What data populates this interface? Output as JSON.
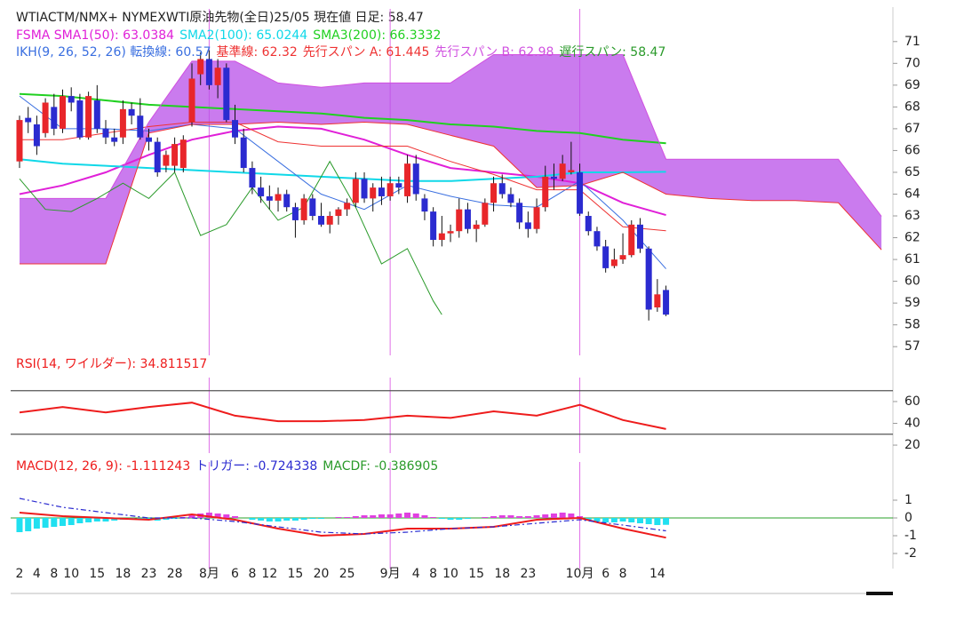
{
  "chart_data": [
    {
      "type": "candlestick",
      "title": "WTIACTM/NMX+ NYMEXWTI原油先物(全日)25/05 現在値 日足: 58.47",
      "xlim": [
        -1.03,
        101.33
      ],
      "ylim": [
        56.6,
        72.5
      ],
      "yticks": [
        57,
        58,
        59,
        60,
        61,
        62,
        63,
        64,
        65,
        66,
        67,
        68,
        69,
        70,
        71
      ],
      "up_color": "#e8262a",
      "down_color": "#2b2bd0",
      "wick_color": "#111111",
      "open": [
        65.5,
        67.5,
        67.2,
        66.8,
        68.0,
        67.0,
        68.5,
        68.3,
        66.6,
        68.3,
        67.0,
        66.6,
        66.6,
        67.9,
        67.6,
        66.6,
        66.4,
        65.3,
        65.3,
        65.2,
        67.3,
        69.5,
        70.2,
        69.0,
        69.8,
        67.4,
        66.6,
        65.2,
        64.3,
        63.9,
        63.7,
        64.0,
        63.4,
        62.8,
        63.8,
        63.0,
        62.6,
        63.0,
        63.3,
        63.6,
        64.7,
        63.8,
        64.3,
        63.9,
        64.5,
        63.9,
        65.4,
        63.8,
        63.2,
        61.9,
        62.2,
        62.3,
        63.3,
        62.4,
        62.6,
        63.6,
        64.5,
        64.0,
        63.6,
        62.7,
        62.4,
        63.4,
        64.8,
        64.7,
        65.0,
        65.0,
        63.0,
        62.3,
        61.6,
        60.7,
        61.0,
        61.2,
        62.6,
        61.5,
        58.8,
        59.6
      ],
      "high": [
        67.6,
        68.0,
        67.6,
        68.4,
        68.6,
        68.8,
        68.9,
        68.6,
        68.7,
        69.0,
        67.4,
        67.0,
        68.3,
        68.2,
        68.4,
        67.0,
        66.6,
        66.0,
        66.6,
        66.7,
        70.0,
        70.5,
        70.6,
        70.2,
        70.0,
        68.1,
        67.0,
        65.5,
        64.8,
        64.4,
        64.3,
        64.2,
        63.6,
        64.0,
        64.0,
        63.6,
        63.2,
        63.4,
        63.8,
        65.0,
        65.0,
        64.5,
        64.8,
        64.8,
        64.8,
        65.8,
        65.8,
        64.0,
        63.4,
        63.0,
        62.6,
        63.8,
        63.6,
        62.8,
        63.8,
        64.8,
        64.9,
        64.3,
        63.8,
        63.2,
        63.8,
        65.3,
        65.4,
        65.8,
        66.4,
        65.4,
        63.2,
        62.5,
        61.9,
        61.5,
        62.2,
        62.8,
        62.9,
        61.6,
        60.1,
        59.8
      ],
      "low": [
        65.2,
        66.8,
        65.8,
        66.6,
        66.7,
        66.8,
        67.8,
        66.5,
        66.5,
        66.8,
        66.3,
        66.2,
        66.3,
        67.2,
        66.5,
        66.0,
        64.8,
        65.0,
        65.0,
        65.0,
        67.1,
        69.0,
        68.8,
        68.4,
        67.3,
        66.3,
        65.0,
        64.0,
        63.6,
        63.3,
        63.2,
        63.2,
        62.0,
        62.6,
        62.8,
        62.5,
        62.2,
        62.6,
        63.0,
        63.4,
        63.6,
        63.2,
        63.5,
        63.7,
        64.0,
        63.6,
        63.7,
        62.8,
        61.6,
        61.6,
        61.8,
        62.0,
        62.2,
        61.8,
        62.5,
        63.2,
        63.8,
        63.4,
        62.4,
        62.0,
        62.2,
        63.2,
        64.2,
        64.6,
        64.9,
        63.0,
        62.1,
        61.4,
        60.4,
        60.6,
        60.8,
        61.1,
        61.3,
        58.2,
        58.6,
        58.4
      ],
      "close": [
        67.4,
        67.3,
        66.2,
        68.2,
        67.0,
        68.5,
        68.2,
        66.6,
        68.5,
        67.0,
        66.6,
        66.4,
        67.9,
        67.6,
        66.6,
        66.4,
        65.0,
        65.8,
        66.3,
        66.5,
        69.3,
        70.2,
        69.0,
        69.8,
        67.4,
        66.6,
        65.2,
        64.3,
        63.9,
        63.7,
        64.0,
        63.4,
        62.8,
        63.8,
        63.0,
        62.6,
        63.0,
        63.3,
        63.6,
        64.7,
        63.8,
        64.3,
        63.9,
        64.5,
        64.3,
        65.4,
        64.0,
        63.2,
        61.9,
        62.2,
        62.3,
        63.3,
        62.4,
        62.6,
        63.6,
        64.5,
        64.0,
        63.6,
        62.7,
        62.4,
        63.4,
        64.8,
        64.7,
        65.4,
        65.1,
        63.1,
        62.3,
        61.6,
        60.6,
        61.0,
        61.2,
        62.6,
        61.5,
        58.7,
        59.4,
        58.47
      ],
      "series": [
        {
          "name": "FSMA SMA1(50): 63.0384",
          "color": "#e020d8",
          "x": [
            0,
            5,
            10,
            15,
            20,
            25,
            30,
            35,
            40,
            45,
            50,
            55,
            60,
            65,
            70,
            75
          ],
          "values": [
            64.0,
            64.4,
            65.0,
            65.8,
            66.5,
            66.9,
            67.1,
            67.0,
            66.5,
            65.8,
            65.2,
            65.0,
            64.8,
            64.5,
            63.6,
            63.0384
          ]
        },
        {
          "name": "SMA2(100): 65.0244",
          "color": "#10d8e8",
          "x": [
            0,
            5,
            10,
            15,
            20,
            25,
            30,
            35,
            40,
            45,
            50,
            55,
            60,
            65,
            70,
            75
          ],
          "values": [
            65.6,
            65.4,
            65.3,
            65.2,
            65.1,
            65.0,
            64.9,
            64.8,
            64.7,
            64.6,
            64.6,
            64.7,
            64.8,
            65.0,
            65.0,
            65.0244
          ]
        },
        {
          "name": "SMA3(200): 66.3332",
          "color": "#20d020",
          "x": [
            0,
            5,
            10,
            15,
            20,
            25,
            30,
            35,
            40,
            45,
            50,
            55,
            60,
            65,
            70,
            75
          ],
          "values": [
            68.6,
            68.5,
            68.3,
            68.1,
            68.0,
            67.9,
            67.8,
            67.7,
            67.5,
            67.4,
            67.2,
            67.1,
            66.9,
            66.8,
            66.5,
            66.3332
          ]
        }
      ],
      "cloud_color": "#b84fe8",
      "ichimoku": [
        {
          "name": "IKH(9, 26, 52, 26) 転換線: 60.57",
          "color": "#3a6fe0",
          "x": [
            0,
            5,
            10,
            15,
            20,
            25,
            30,
            35,
            40,
            45,
            50,
            55,
            60,
            65,
            70,
            75
          ],
          "values": [
            68.5,
            67.0,
            67.0,
            66.9,
            67.2,
            67.0,
            65.5,
            64.0,
            63.3,
            64.4,
            63.9,
            63.5,
            63.4,
            64.6,
            62.8,
            60.57
          ]
        },
        {
          "name": "基準線: 62.32",
          "color": "#ee3333",
          "x": [
            0,
            5,
            10,
            15,
            20,
            25,
            30,
            35,
            40,
            45,
            50,
            55,
            60,
            65,
            70,
            75
          ],
          "values": [
            66.5,
            66.5,
            66.8,
            67.1,
            67.3,
            67.3,
            66.4,
            66.2,
            66.2,
            66.2,
            65.5,
            64.9,
            64.2,
            64.2,
            62.5,
            62.32
          ]
        },
        {
          "name": "先行スパン A: 61.445",
          "color": "#ee3333",
          "x": [
            0,
            5,
            10,
            15,
            20,
            25,
            30,
            35,
            40,
            45,
            50,
            55,
            60,
            65,
            70,
            75,
            80,
            85,
            90,
            95,
            100
          ],
          "values": [
            60.8,
            60.8,
            60.8,
            66.8,
            67.2,
            67.2,
            67.3,
            67.2,
            67.3,
            67.2,
            66.7,
            66.2,
            64.3,
            64.4,
            65.0,
            64.0,
            63.8,
            63.7,
            63.7,
            63.6,
            61.445
          ]
        },
        {
          "name": "先行スパン B: 62.98",
          "color": "#d050e0",
          "x": [
            0,
            5,
            10,
            15,
            20,
            25,
            30,
            35,
            40,
            45,
            50,
            55,
            60,
            65,
            70,
            75,
            80,
            85,
            90,
            95,
            100
          ],
          "values": [
            63.8,
            63.8,
            63.8,
            67.3,
            70.1,
            70.1,
            69.1,
            68.9,
            69.1,
            69.1,
            69.1,
            70.4,
            70.4,
            70.4,
            70.4,
            65.6,
            65.6,
            65.6,
            65.6,
            65.6,
            62.98
          ]
        },
        {
          "name": "遅行スパン: 58.47",
          "color": "#2a9a2a",
          "x": [
            0,
            3,
            6,
            9,
            12,
            15,
            18,
            21,
            24,
            27,
            30,
            33,
            36,
            39,
            42,
            45,
            48,
            49
          ],
          "values": [
            64.7,
            63.3,
            63.2,
            63.8,
            64.5,
            63.8,
            65.0,
            62.1,
            62.6,
            64.3,
            62.8,
            63.4,
            65.5,
            63.4,
            60.8,
            61.5,
            59.1,
            58.47
          ]
        }
      ]
    },
    {
      "type": "line",
      "xlim": [
        -1.03,
        101.33
      ],
      "ylim": [
        12.7,
        82
      ],
      "yticks": [
        20,
        40,
        60
      ],
      "hlines": [
        70,
        30
      ],
      "series": [
        {
          "name": "RSI(14, ワイルダー): 34.811517",
          "color": "#ee1c1c",
          "x": [
            0,
            5,
            10,
            15,
            20,
            25,
            30,
            35,
            40,
            45,
            50,
            55,
            60,
            65,
            70,
            75
          ],
          "values": [
            50,
            55,
            50,
            55,
            59,
            47,
            42,
            42,
            43,
            47,
            45,
            51,
            47,
            57,
            43,
            34.811517
          ]
        }
      ]
    },
    {
      "type": "line",
      "xlim": [
        -1.03,
        101.33
      ],
      "ylim": [
        -2.85,
        3.15
      ],
      "yticks": [
        -2,
        -1,
        0,
        1
      ],
      "zero_line_color": "#2aa02a",
      "pos_color": "#e040e0",
      "neg_color": "#20e0f0",
      "series": [
        {
          "name": "MACD(12, 26, 9): -1.111243",
          "color": "#ee1c1c",
          "x": [
            0,
            5,
            10,
            15,
            20,
            25,
            30,
            35,
            40,
            45,
            50,
            55,
            60,
            65,
            70,
            75
          ],
          "values": [
            0.3,
            0.1,
            0.0,
            -0.1,
            0.2,
            -0.1,
            -0.6,
            -1.0,
            -0.9,
            -0.6,
            -0.6,
            -0.5,
            -0.1,
            0.0,
            -0.6,
            -1.111243
          ]
        },
        {
          "name": "トリガー: -0.724338",
          "color": "#2b2bd0",
          "dash": true,
          "x": [
            0,
            5,
            10,
            15,
            20,
            25,
            30,
            35,
            40,
            45,
            50,
            55,
            60,
            65,
            70,
            75
          ],
          "values": [
            1.1,
            0.6,
            0.3,
            0.0,
            0.0,
            -0.2,
            -0.5,
            -0.8,
            -0.9,
            -0.8,
            -0.6,
            -0.5,
            -0.3,
            -0.1,
            -0.4,
            -0.724338
          ]
        },
        {
          "name": "MACDF: -0.386905",
          "color": "#2a9a2a",
          "bars": true,
          "values": [
            -0.8,
            -0.75,
            -0.6,
            -0.55,
            -0.5,
            -0.45,
            -0.4,
            -0.3,
            -0.25,
            -0.2,
            -0.2,
            -0.15,
            -0.1,
            -0.1,
            -0.05,
            -0.1,
            -0.15,
            -0.1,
            -0.05,
            0.05,
            0.15,
            0.25,
            0.3,
            0.25,
            0.2,
            0.1,
            0.0,
            -0.1,
            -0.15,
            -0.2,
            -0.2,
            -0.15,
            -0.15,
            -0.1,
            -0.05,
            -0.05,
            0.0,
            0.05,
            0.05,
            0.1,
            0.15,
            0.15,
            0.2,
            0.2,
            0.25,
            0.3,
            0.25,
            0.15,
            0.05,
            -0.05,
            -0.1,
            -0.1,
            -0.05,
            0.0,
            0.05,
            0.1,
            0.15,
            0.15,
            0.1,
            0.1,
            0.15,
            0.2,
            0.25,
            0.3,
            0.25,
            0.1,
            -0.1,
            -0.2,
            -0.25,
            -0.25,
            -0.2,
            -0.25,
            -0.3,
            -0.35,
            -0.4,
            -0.386905
          ]
        }
      ],
      "xticks": [
        {
          "value": 0,
          "label": "2"
        },
        {
          "value": 2,
          "label": "4"
        },
        {
          "value": 4,
          "label": "8"
        },
        {
          "value": 6,
          "label": "10"
        },
        {
          "value": 9,
          "label": "15"
        },
        {
          "value": 12,
          "label": "18"
        },
        {
          "value": 15,
          "label": "23"
        },
        {
          "value": 18,
          "label": "28"
        },
        {
          "value": 22,
          "label": "8月",
          "color": "#e070e8"
        },
        {
          "value": 25,
          "label": "6"
        },
        {
          "value": 27,
          "label": "8"
        },
        {
          "value": 29,
          "label": "12"
        },
        {
          "value": 32,
          "label": "15"
        },
        {
          "value": 35,
          "label": "20"
        },
        {
          "value": 38,
          "label": "25"
        },
        {
          "value": 43,
          "label": "9月",
          "color": "#e070e8"
        },
        {
          "value": 46,
          "label": "4"
        },
        {
          "value": 48,
          "label": "8"
        },
        {
          "value": 50,
          "label": "10"
        },
        {
          "value": 53,
          "label": "15"
        },
        {
          "value": 56,
          "label": "18"
        },
        {
          "value": 59,
          "label": "23"
        },
        {
          "value": 65,
          "label": "10月",
          "color": "#e070e8"
        },
        {
          "value": 68,
          "label": "6"
        },
        {
          "value": 70,
          "label": "8"
        },
        {
          "value": 74,
          "label": "14"
        }
      ]
    }
  ]
}
